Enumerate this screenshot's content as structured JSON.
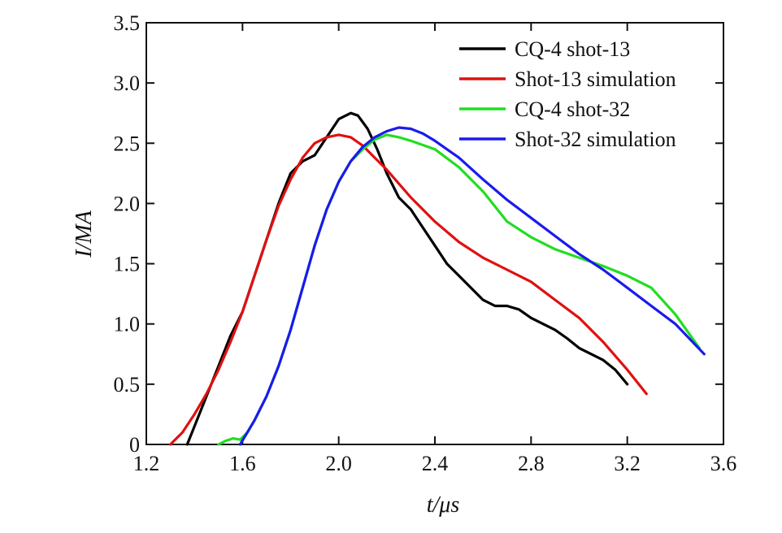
{
  "chart_data": {
    "type": "line",
    "xlabel": "t/μs",
    "ylabel": "I/MA",
    "xlim": [
      1.2,
      3.6
    ],
    "ylim": [
      0,
      3.5
    ],
    "xticks": [
      "1.2",
      "1.6",
      "2.0",
      "2.4",
      "2.8",
      "3.2",
      "3.6"
    ],
    "yticks": [
      "0",
      "0.5",
      "1.0",
      "1.5",
      "2.0",
      "2.5",
      "3.0",
      "3.5"
    ],
    "grid": false,
    "legend_position": "top-right",
    "series": [
      {
        "name": "CQ-4 shot-13",
        "color": "#000000",
        "x": [
          1.37,
          1.4,
          1.45,
          1.5,
          1.55,
          1.6,
          1.65,
          1.7,
          1.75,
          1.8,
          1.85,
          1.9,
          1.95,
          2.0,
          2.05,
          2.08,
          2.12,
          2.16,
          2.2,
          2.25,
          2.3,
          2.35,
          2.4,
          2.45,
          2.5,
          2.55,
          2.6,
          2.65,
          2.7,
          2.75,
          2.8,
          2.85,
          2.9,
          2.95,
          3.0,
          3.05,
          3.1,
          3.15,
          3.2
        ],
        "y": [
          0.0,
          0.15,
          0.4,
          0.65,
          0.9,
          1.1,
          1.4,
          1.7,
          2.0,
          2.25,
          2.35,
          2.4,
          2.55,
          2.7,
          2.75,
          2.73,
          2.62,
          2.45,
          2.25,
          2.05,
          1.95,
          1.8,
          1.65,
          1.5,
          1.4,
          1.3,
          1.2,
          1.15,
          1.15,
          1.12,
          1.05,
          1.0,
          0.95,
          0.88,
          0.8,
          0.75,
          0.7,
          0.62,
          0.5
        ]
      },
      {
        "name": "Shot-13 simulation",
        "color": "#e01010",
        "x": [
          1.3,
          1.35,
          1.4,
          1.45,
          1.5,
          1.55,
          1.6,
          1.65,
          1.7,
          1.75,
          1.8,
          1.85,
          1.9,
          1.95,
          2.0,
          2.05,
          2.1,
          2.15,
          2.2,
          2.3,
          2.4,
          2.5,
          2.6,
          2.7,
          2.8,
          2.9,
          3.0,
          3.1,
          3.2,
          3.28
        ],
        "y": [
          0.0,
          0.1,
          0.25,
          0.42,
          0.62,
          0.85,
          1.1,
          1.4,
          1.7,
          1.98,
          2.2,
          2.38,
          2.5,
          2.55,
          2.57,
          2.55,
          2.48,
          2.38,
          2.28,
          2.05,
          1.85,
          1.68,
          1.55,
          1.45,
          1.35,
          1.2,
          1.05,
          0.85,
          0.62,
          0.42
        ]
      },
      {
        "name": "CQ-4 shot-32",
        "color": "#22dd22",
        "x": [
          1.5,
          1.53,
          1.56,
          1.59,
          1.62,
          1.65,
          1.7,
          1.75,
          1.8,
          1.85,
          1.9,
          1.95,
          2.0,
          2.05,
          2.1,
          2.15,
          2.2,
          2.25,
          2.3,
          2.4,
          2.5,
          2.6,
          2.7,
          2.8,
          2.9,
          3.0,
          3.1,
          3.2,
          3.3,
          3.4,
          3.5
        ],
        "y": [
          0.0,
          0.03,
          0.05,
          0.04,
          0.1,
          0.2,
          0.4,
          0.65,
          0.95,
          1.3,
          1.65,
          1.95,
          2.18,
          2.35,
          2.45,
          2.53,
          2.57,
          2.55,
          2.52,
          2.45,
          2.3,
          2.1,
          1.85,
          1.72,
          1.62,
          1.55,
          1.48,
          1.4,
          1.3,
          1.08,
          0.8
        ]
      },
      {
        "name": "Shot-32 simulation",
        "color": "#1a1aee",
        "x": [
          1.59,
          1.62,
          1.65,
          1.7,
          1.75,
          1.8,
          1.85,
          1.9,
          1.95,
          2.0,
          2.05,
          2.1,
          2.15,
          2.2,
          2.25,
          2.3,
          2.35,
          2.4,
          2.5,
          2.6,
          2.7,
          2.8,
          2.9,
          3.0,
          3.1,
          3.2,
          3.3,
          3.4,
          3.52
        ],
        "y": [
          0.0,
          0.1,
          0.2,
          0.4,
          0.65,
          0.95,
          1.3,
          1.65,
          1.95,
          2.18,
          2.35,
          2.47,
          2.55,
          2.6,
          2.63,
          2.62,
          2.58,
          2.52,
          2.38,
          2.2,
          2.03,
          1.88,
          1.73,
          1.58,
          1.45,
          1.3,
          1.15,
          1.0,
          0.75
        ]
      }
    ]
  }
}
